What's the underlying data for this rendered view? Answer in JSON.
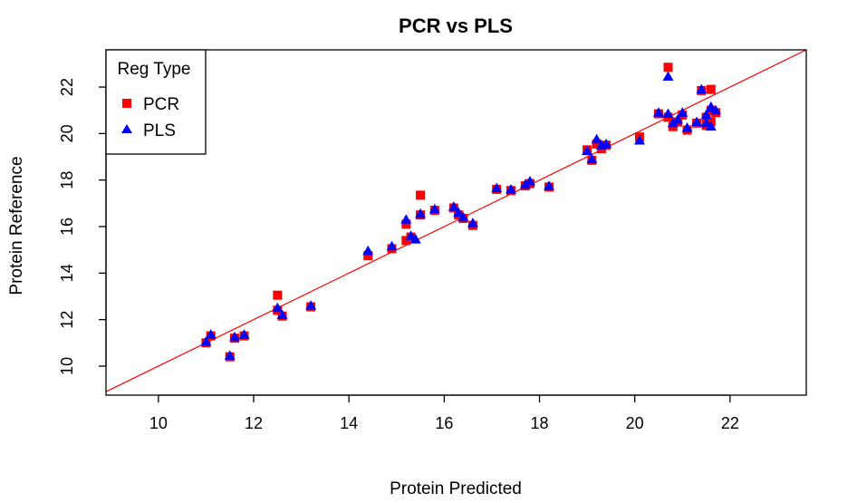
{
  "chart_data": {
    "type": "scatter",
    "title": "PCR vs PLS",
    "xlabel": "Protein Predicted",
    "ylabel": "Protein Reference",
    "xlim": [
      8.9,
      23.6
    ],
    "ylim": [
      8.75,
      23.6
    ],
    "xticks": [
      10,
      12,
      14,
      16,
      18,
      20,
      22
    ],
    "yticks": [
      10,
      12,
      14,
      16,
      18,
      20,
      22
    ],
    "grid": false,
    "legend": {
      "title": "Reg Type",
      "position": "top-left",
      "entries": [
        {
          "label": "PCR",
          "color": "#ff0000",
          "marker": "square"
        },
        {
          "label": "PLS",
          "color": "#0000ff",
          "marker": "triangle"
        }
      ]
    },
    "reference_line": {
      "slope": 1,
      "intercept": 0,
      "color": "#ff0000"
    },
    "series": [
      {
        "name": "PCR",
        "color": "#ff0000",
        "marker": "square",
        "points": [
          [
            11.0,
            11.0
          ],
          [
            11.1,
            11.3
          ],
          [
            11.5,
            10.4
          ],
          [
            11.6,
            11.2
          ],
          [
            11.8,
            11.3
          ],
          [
            12.5,
            13.05
          ],
          [
            12.5,
            12.4
          ],
          [
            12.6,
            12.15
          ],
          [
            13.2,
            12.55
          ],
          [
            14.4,
            14.75
          ],
          [
            14.9,
            15.05
          ],
          [
            15.2,
            15.4
          ],
          [
            15.2,
            16.1
          ],
          [
            15.3,
            15.55
          ],
          [
            15.5,
            17.35
          ],
          [
            15.5,
            16.5
          ],
          [
            15.8,
            16.7
          ],
          [
            16.2,
            16.8
          ],
          [
            16.3,
            16.5
          ],
          [
            16.4,
            16.35
          ],
          [
            16.6,
            16.05
          ],
          [
            17.1,
            17.6
          ],
          [
            17.4,
            17.55
          ],
          [
            17.7,
            17.75
          ],
          [
            17.8,
            17.85
          ],
          [
            18.2,
            17.7
          ],
          [
            19.0,
            19.3
          ],
          [
            19.1,
            18.85
          ],
          [
            19.2,
            19.55
          ],
          [
            19.3,
            19.35
          ],
          [
            19.4,
            19.5
          ],
          [
            20.1,
            19.85
          ],
          [
            20.5,
            20.85
          ],
          [
            20.7,
            22.85
          ],
          [
            20.7,
            20.7
          ],
          [
            20.8,
            20.3
          ],
          [
            20.9,
            20.5
          ],
          [
            21.0,
            20.8
          ],
          [
            21.1,
            20.15
          ],
          [
            21.3,
            20.45
          ],
          [
            21.4,
            21.85
          ],
          [
            21.5,
            20.35
          ],
          [
            21.5,
            20.7
          ],
          [
            21.6,
            21.0
          ],
          [
            21.6,
            20.5
          ],
          [
            21.6,
            21.9
          ],
          [
            21.7,
            20.9
          ]
        ]
      },
      {
        "name": "PLS",
        "color": "#0000ff",
        "marker": "triangle",
        "points": [
          [
            11.0,
            11.05
          ],
          [
            11.1,
            11.35
          ],
          [
            11.5,
            10.45
          ],
          [
            11.6,
            11.25
          ],
          [
            11.8,
            11.35
          ],
          [
            12.5,
            12.5
          ],
          [
            12.6,
            12.2
          ],
          [
            13.2,
            12.6
          ],
          [
            14.4,
            14.95
          ],
          [
            14.9,
            15.15
          ],
          [
            15.2,
            16.3
          ],
          [
            15.3,
            15.6
          ],
          [
            15.4,
            15.45
          ],
          [
            15.5,
            16.55
          ],
          [
            15.8,
            16.75
          ],
          [
            16.2,
            16.85
          ],
          [
            16.3,
            16.6
          ],
          [
            16.4,
            16.4
          ],
          [
            16.6,
            16.15
          ],
          [
            17.1,
            17.65
          ],
          [
            17.4,
            17.6
          ],
          [
            17.7,
            17.8
          ],
          [
            17.8,
            17.95
          ],
          [
            18.2,
            17.75
          ],
          [
            19.0,
            19.25
          ],
          [
            19.1,
            18.9
          ],
          [
            19.2,
            19.75
          ],
          [
            19.3,
            19.5
          ],
          [
            19.4,
            19.55
          ],
          [
            20.1,
            19.7
          ],
          [
            20.5,
            20.9
          ],
          [
            20.7,
            22.45
          ],
          [
            20.7,
            20.85
          ],
          [
            20.8,
            20.45
          ],
          [
            20.9,
            20.6
          ],
          [
            21.0,
            20.9
          ],
          [
            21.1,
            20.25
          ],
          [
            21.3,
            20.5
          ],
          [
            21.4,
            21.9
          ],
          [
            21.5,
            20.45
          ],
          [
            21.5,
            20.8
          ],
          [
            21.6,
            21.1
          ],
          [
            21.6,
            20.3
          ],
          [
            21.6,
            21.15
          ],
          [
            21.7,
            21.0
          ]
        ]
      }
    ]
  }
}
